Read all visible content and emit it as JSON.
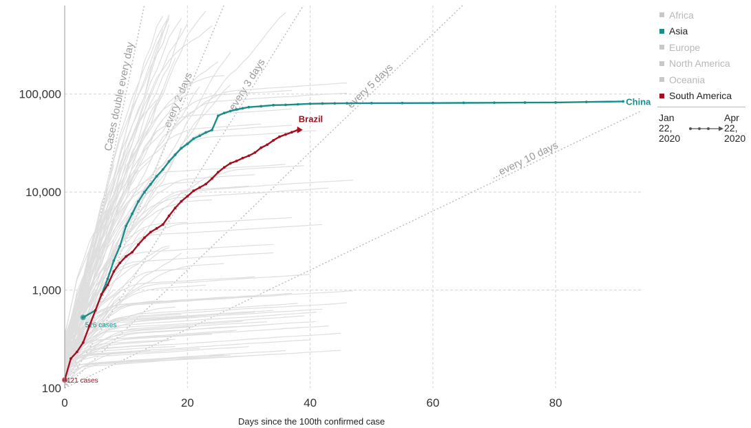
{
  "chart_data": {
    "type": "line",
    "xlabel": "Days since the 100th confirmed case",
    "ylabel": "",
    "y_scale": "log",
    "xlim": [
      0,
      94
    ],
    "ylim": [
      100,
      800000
    ],
    "x_ticks": [
      0,
      20,
      40,
      60,
      80
    ],
    "y_ticks": [
      100,
      1000,
      10000,
      100000
    ],
    "y_tick_labels": [
      "100",
      "1,000",
      "10,000",
      "100,000"
    ],
    "grid": true,
    "legend_position": "right",
    "legend": [
      {
        "name": "Africa",
        "color": "#c8c8c8",
        "highlight": false
      },
      {
        "name": "Asia",
        "color": "#1a8c8c",
        "highlight": true
      },
      {
        "name": "Europe",
        "color": "#c8c8c8",
        "highlight": false
      },
      {
        "name": "North America",
        "color": "#c8c8c8",
        "highlight": false
      },
      {
        "name": "Oceania",
        "color": "#c8c8c8",
        "highlight": false
      },
      {
        "name": "South America",
        "color": "#a01020",
        "highlight": true
      }
    ],
    "time_range": {
      "start": [
        "Jan",
        "22,",
        "2020"
      ],
      "end": [
        "Apr",
        "22,",
        "2020"
      ]
    },
    "doubling_lines": [
      {
        "label": "Cases double every day",
        "doubling_days": 1
      },
      {
        "label": "...every 2 days",
        "doubling_days": 2
      },
      {
        "label": "every 3 days",
        "doubling_days": 3
      },
      {
        "label": "every 5 days",
        "doubling_days": 5
      },
      {
        "label": "...every 10 days",
        "doubling_days": 10
      }
    ],
    "series": [
      {
        "name": "China",
        "color": "#1a8c8c",
        "start_note": "526 cases",
        "x": [
          3,
          5,
          6,
          7,
          8,
          9,
          10,
          11,
          12,
          13,
          14,
          15,
          16,
          17,
          18,
          19,
          20,
          21,
          22,
          23,
          24,
          25,
          26,
          27,
          28,
          29,
          30,
          32,
          34,
          36,
          38,
          40,
          42,
          44,
          46,
          50,
          55,
          60,
          65,
          70,
          75,
          80,
          85,
          91
        ],
        "y": [
          526,
          620,
          900,
          1300,
          2000,
          2800,
          4500,
          6000,
          8000,
          10000,
          12000,
          14500,
          17000,
          20500,
          24000,
          28000,
          31000,
          35000,
          37500,
          40500,
          43000,
          60000,
          64000,
          67000,
          69500,
          71500,
          73500,
          75000,
          77000,
          77500,
          78500,
          79500,
          80000,
          80300,
          80500,
          80700,
          80900,
          81000,
          81300,
          81500,
          81800,
          82000,
          83000,
          84000
        ]
      },
      {
        "name": "Brazil",
        "color": "#a01020",
        "start_note": "121 cases",
        "x": [
          0,
          1,
          2,
          3,
          4,
          5,
          6,
          7,
          8,
          9,
          10,
          11,
          12,
          13,
          14,
          15,
          16,
          17,
          18,
          19,
          20,
          21,
          22,
          23,
          24,
          25,
          26,
          27,
          28,
          29,
          30,
          31,
          32,
          33,
          34,
          35,
          36,
          37,
          38
        ],
        "y": [
          121,
          200,
          234,
          291,
          428,
          621,
          904,
          1128,
          1546,
          1891,
          2201,
          2433,
          2915,
          3417,
          3904,
          4256,
          4661,
          5717,
          6880,
          8044,
          9056,
          10278,
          11130,
          12056,
          13717,
          15927,
          17857,
          19638,
          20727,
          22192,
          23430,
          25262,
          28320,
          30425,
          33682,
          36658,
          38654,
          40743,
          43079
        ]
      }
    ]
  }
}
